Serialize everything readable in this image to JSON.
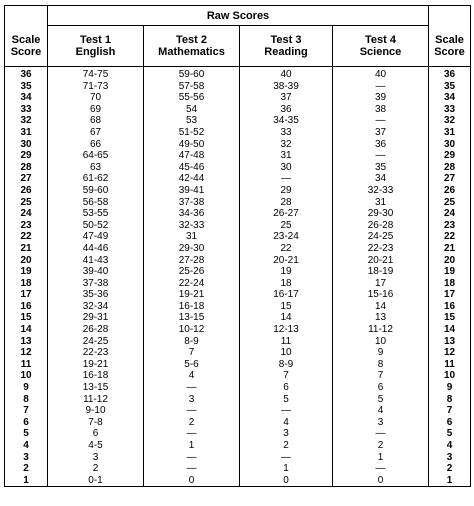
{
  "header": {
    "raw_scores": "Raw Scores",
    "scale_score_left": [
      "Scale",
      "Score"
    ],
    "scale_score_right": [
      "Scale",
      "Score"
    ],
    "tests": [
      {
        "line1": "Test 1",
        "line2": "English"
      },
      {
        "line1": "Test 2",
        "line2": "Mathematics"
      },
      {
        "line1": "Test 3",
        "line2": "Reading"
      },
      {
        "line1": "Test 4",
        "line2": "Science"
      }
    ]
  },
  "rows": [
    [
      "36",
      "74-75",
      "59-60",
      "40",
      "40",
      "36"
    ],
    [
      "35",
      "71-73",
      "57-58",
      "38-39",
      "—",
      "35"
    ],
    [
      "34",
      "70",
      "55-56",
      "37",
      "39",
      "34"
    ],
    [
      "33",
      "69",
      "54",
      "36",
      "38",
      "33"
    ],
    [
      "32",
      "68",
      "53",
      "34-35",
      "—",
      "32"
    ],
    [
      "31",
      "67",
      "51-52",
      "33",
      "37",
      "31"
    ],
    [
      "30",
      "66",
      "49-50",
      "32",
      "36",
      "30"
    ],
    [
      "29",
      "64-65",
      "47-48",
      "31",
      "—",
      "29"
    ],
    [
      "28",
      "63",
      "45-46",
      "30",
      "35",
      "28"
    ],
    [
      "27",
      "61-62",
      "42-44",
      "—",
      "34",
      "27"
    ],
    [
      "26",
      "59-60",
      "39-41",
      "29",
      "32-33",
      "26"
    ],
    [
      "25",
      "56-58",
      "37-38",
      "28",
      "31",
      "25"
    ],
    [
      "24",
      "53-55",
      "34-36",
      "26-27",
      "29-30",
      "24"
    ],
    [
      "23",
      "50-52",
      "32-33",
      "25",
      "26-28",
      "23"
    ],
    [
      "22",
      "47-49",
      "31",
      "23-24",
      "24-25",
      "22"
    ],
    [
      "21",
      "44-46",
      "29-30",
      "22",
      "22-23",
      "21"
    ],
    [
      "20",
      "41-43",
      "27-28",
      "20-21",
      "20-21",
      "20"
    ],
    [
      "19",
      "39-40",
      "25-26",
      "19",
      "18-19",
      "19"
    ],
    [
      "18",
      "37-38",
      "22-24",
      "18",
      "17",
      "18"
    ],
    [
      "17",
      "35-36",
      "19-21",
      "16-17",
      "15-16",
      "17"
    ],
    [
      "16",
      "32-34",
      "16-18",
      "15",
      "14",
      "16"
    ],
    [
      "15",
      "29-31",
      "13-15",
      "14",
      "13",
      "15"
    ],
    [
      "14",
      "26-28",
      "10-12",
      "12-13",
      "11-12",
      "14"
    ],
    [
      "13",
      "24-25",
      "8-9",
      "11",
      "10",
      "13"
    ],
    [
      "12",
      "22-23",
      "7",
      "10",
      "9",
      "12"
    ],
    [
      "11",
      "19-21",
      "5-6",
      "8-9",
      "8",
      "11"
    ],
    [
      "10",
      "16-18",
      "4",
      "7",
      "7",
      "10"
    ],
    [
      "9",
      "13-15",
      "—",
      "6",
      "6",
      "9"
    ],
    [
      "8",
      "11-12",
      "3",
      "5",
      "5",
      "8"
    ],
    [
      "7",
      "9-10",
      "—",
      "—",
      "4",
      "7"
    ],
    [
      "6",
      "7-8",
      "2",
      "4",
      "3",
      "6"
    ],
    [
      "5",
      "6",
      "—",
      "3",
      "—",
      "5"
    ],
    [
      "4",
      "4-5",
      "1",
      "2",
      "2",
      "4"
    ],
    [
      "3",
      "3",
      "—",
      "—",
      "1",
      "3"
    ],
    [
      "2",
      "2",
      "—",
      "1",
      "—",
      "2"
    ],
    [
      "1",
      "0-1",
      "0",
      "0",
      "0",
      "1"
    ]
  ]
}
